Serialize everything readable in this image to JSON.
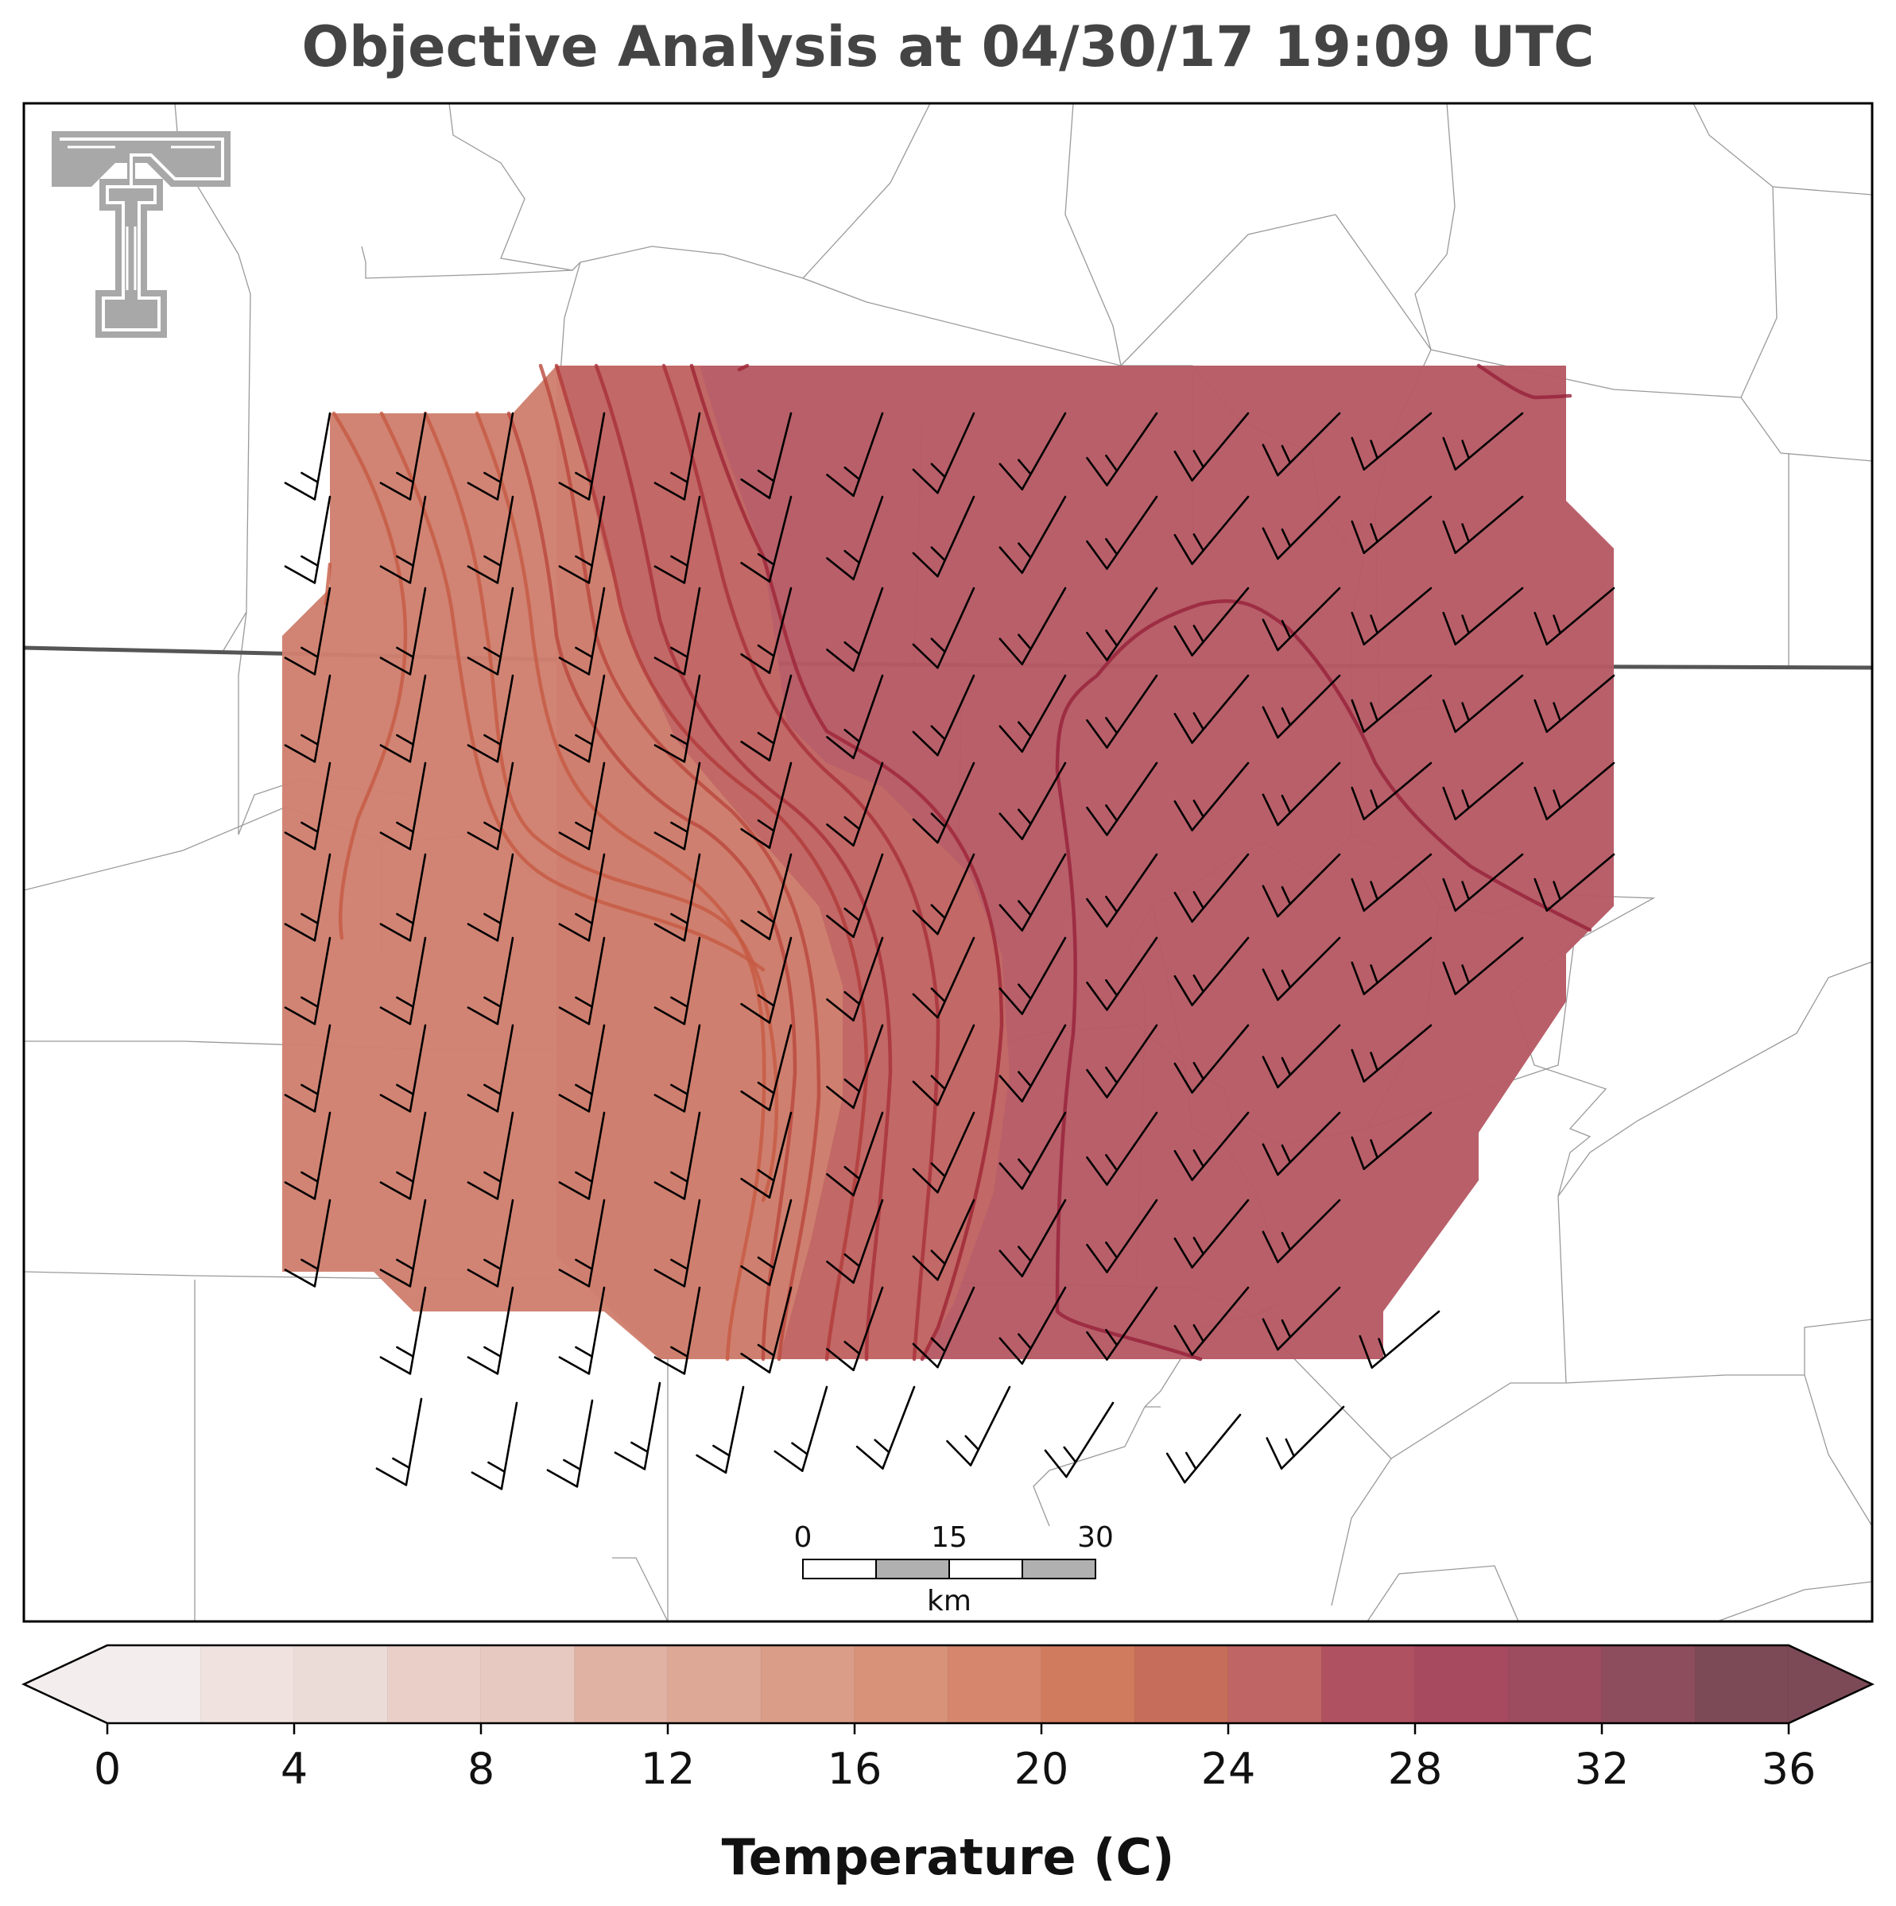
{
  "title": "Objective Analysis at 04/30/17 19:09 UTC",
  "colorbar": {
    "label": "Temperature (C)",
    "min": 0,
    "max": 36,
    "step": 2,
    "ticks": [
      0,
      4,
      8,
      12,
      16,
      20,
      24,
      28,
      32,
      36
    ],
    "extend": "both",
    "colors": [
      "#f3eeed",
      "#efe2df",
      "#ecdcd7",
      "#eacfc8",
      "#e7c9c1",
      "#e4bdb2",
      "#e0b2a4",
      "#dda896",
      "#da9d88",
      "#d8927a",
      "#d5866c",
      "#d07a5e",
      "#c66e5b",
      "#bf6565",
      "#b65a64",
      "#b05161",
      "#a7495f",
      "#9c4c5e",
      "#8d4d5c",
      "#7c4a56"
    ]
  },
  "scale_bar": {
    "labels": [
      "0",
      "15",
      "30"
    ],
    "unit": "km"
  },
  "temperature_regions": [
    {
      "name": "west-zone",
      "approx_temp_c": 17
    },
    {
      "name": "center-zone",
      "approx_temp_c": 21
    },
    {
      "name": "east-zone",
      "approx_temp_c": 25
    }
  ],
  "wind_barbs": {
    "representation": "barbs",
    "typical_speed_kt": 15,
    "west_direction_deg": 190,
    "east_direction_deg": 230
  },
  "logo": "texas-tech-double-t"
}
